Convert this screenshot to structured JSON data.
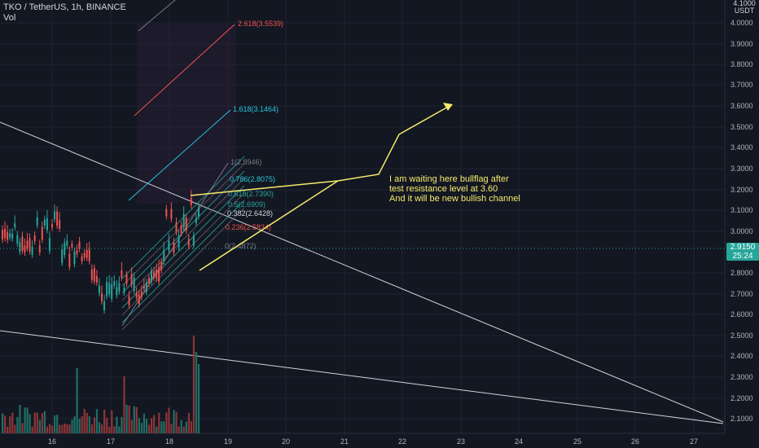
{
  "header": {
    "symbol_line": "TKO / TetherUS, 1h, BINANCE",
    "volume_label": "Vol"
  },
  "price_axis": {
    "currency_top": "4.1000",
    "currency": "USDT",
    "ticks": [
      "4.0000",
      "3.9000",
      "3.8000",
      "3.7000",
      "3.6000",
      "3.5000",
      "3.4000",
      "3.3000",
      "3.2000",
      "3.1000",
      "3.0000",
      "2.8000",
      "2.7000",
      "2.6000",
      "2.5000",
      "2.4000",
      "2.3000",
      "2.2000",
      "2.1000"
    ]
  },
  "time_axis": {
    "ticks": [
      "16",
      "17",
      "18",
      "19",
      "20",
      "21",
      "22",
      "23",
      "24",
      "25",
      "26",
      "27"
    ]
  },
  "current_price": {
    "value": "2.9150",
    "countdown": "25:24"
  },
  "fib_levels": [
    {
      "label": "2.618(3.5539)",
      "color": "#ef5350"
    },
    {
      "label": "1.618(3.1464)",
      "color": "#26c6da"
    },
    {
      "label": "1(2.8946)",
      "color": "#787b86"
    },
    {
      "label": "0.786(2.8075)",
      "color": "#26c6da"
    },
    {
      "label": "0.618(2.7390)",
      "color": "#26a69a"
    },
    {
      "label": "0.5(2.6909)",
      "color": "#26a69a"
    },
    {
      "label": "0.382(2.6428)",
      "color": "#d1d4dc"
    },
    {
      "label": "0.236(2.5834)",
      "color": "#ef5350"
    },
    {
      "label": "0(2.4872)",
      "color": "#787b86"
    }
  ],
  "annotation": {
    "lines": [
      "I am waiting here bullflag after",
      "test resistance level at 3.60",
      "And it will be new bullish channel"
    ],
    "color": "#f5eb6b"
  },
  "colors": {
    "background": "#131722",
    "up": "#26a69a",
    "down": "#ef5350",
    "axis_text": "#b2b5be"
  }
}
